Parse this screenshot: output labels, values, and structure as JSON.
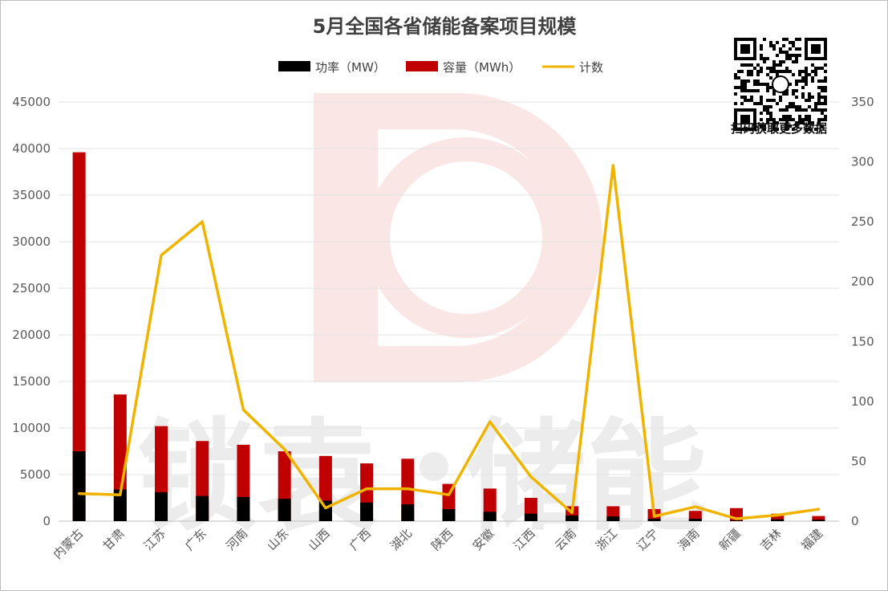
{
  "chart_data": {
    "type": "bar",
    "title": "5月全国各省储能备案项目规模",
    "categories": [
      "内蒙古",
      "甘肃",
      "江苏",
      "广东",
      "河南",
      "山东",
      "山西",
      "广西",
      "湖北",
      "陕西",
      "安徽",
      "江西",
      "云南",
      "浙江",
      "辽宁",
      "海南",
      "新疆",
      "吉林",
      "福建"
    ],
    "series": [
      {
        "name": "功率（MW）",
        "kind": "bar-stacked",
        "color": "#000000",
        "values": [
          7500,
          3400,
          3100,
          2700,
          2600,
          2400,
          2200,
          2000,
          1800,
          1300,
          1000,
          800,
          600,
          500,
          250,
          250,
          80,
          200,
          150
        ]
      },
      {
        "name": "容量（MWh）",
        "kind": "bar-stacked-total",
        "color": "#c00000",
        "values": [
          39600,
          13600,
          10200,
          8600,
          8200,
          7500,
          7000,
          6200,
          6700,
          4000,
          3500,
          2500,
          1600,
          1600,
          1300,
          1100,
          1400,
          800,
          550
        ]
      },
      {
        "name": "计数",
        "kind": "line",
        "axis": "right",
        "color": "#f0b400",
        "values": [
          23,
          22,
          222,
          250,
          93,
          60,
          11,
          27,
          27,
          22,
          83,
          37,
          7,
          297,
          4,
          12,
          2,
          5,
          10
        ]
      }
    ],
    "y_left": {
      "min": 0,
      "max": 45000,
      "ticks": [
        "0",
        "5000",
        "10000",
        "15000",
        "20000",
        "25000",
        "30000",
        "35000",
        "40000",
        "45000"
      ]
    },
    "y_right": {
      "min": 0,
      "max": 350,
      "ticks": [
        "0",
        "50",
        "100",
        "150",
        "200",
        "250",
        "300",
        "350"
      ]
    },
    "grid": true,
    "legend_position": "top"
  },
  "watermark": {
    "text": "储能",
    "obscured_text": "锁袁",
    "logo_letter": "D",
    "color": "#ededed"
  },
  "qr": {
    "caption": "扫码获取更多数据"
  }
}
